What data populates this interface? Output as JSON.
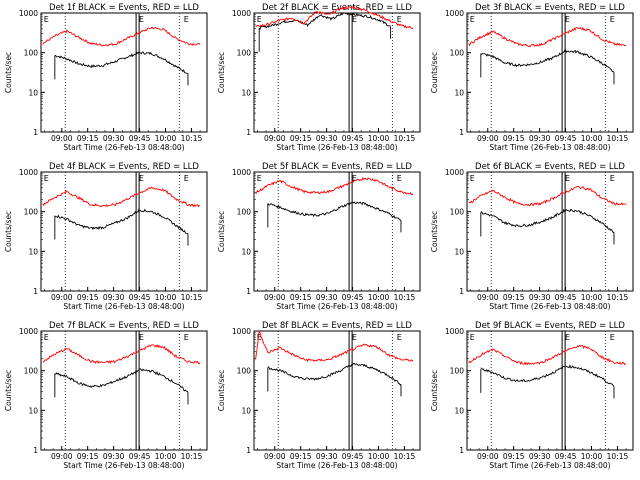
{
  "figure": {
    "common_ylabel": "Counts/sec",
    "common_xlabel": "Start Time (26-Feb-13 08:48:00)",
    "x_tick_labels": [
      "09:00",
      "09:15",
      "09:30",
      "09:45",
      "10:00",
      "10:15"
    ],
    "y_tick_labels": [
      "1",
      "10",
      "100",
      "1000"
    ],
    "marker_letters": [
      "E",
      "E",
      "E"
    ],
    "colors": {
      "events": "#000000",
      "lld": "#ff0000",
      "axes": "#000000"
    }
  },
  "chart_data": [
    {
      "type": "line",
      "title": "Det 1f BLACK = Events, RED = LLD",
      "xlabel": "Start Time (26-Feb-13 08:48:00)",
      "ylabel": "Counts/sec",
      "yscale": "log",
      "ylim": [
        1,
        1000
      ],
      "x_unit": "time",
      "series": [
        {
          "name": "Events",
          "color": "#000000",
          "x": [
            "08:56",
            "09:03",
            "09:10",
            "09:17",
            "09:24",
            "09:31",
            "09:38",
            "09:45",
            "09:52",
            "09:59",
            "10:06",
            "10:13"
          ],
          "values": [
            85,
            70,
            52,
            45,
            48,
            60,
            78,
            100,
            95,
            70,
            45,
            30
          ]
        },
        {
          "name": "LLD",
          "color": "#ff0000",
          "x": [
            "08:49",
            "08:56",
            "09:03",
            "09:10",
            "09:17",
            "09:24",
            "09:31",
            "09:38",
            "09:45",
            "09:52",
            "09:59",
            "10:06",
            "10:13",
            "10:20"
          ],
          "values": [
            170,
            260,
            350,
            240,
            170,
            155,
            165,
            230,
            320,
            430,
            380,
            230,
            170,
            160
          ]
        }
      ]
    },
    {
      "type": "line",
      "title": "Det 2f BLACK = Events, RED = LLD",
      "xlabel": "Start Time (26-Feb-13 08:48:00)",
      "ylabel": "Counts/sec",
      "yscale": "log",
      "ylim": [
        1,
        1000
      ],
      "x_unit": "time",
      "series": [
        {
          "name": "Events",
          "color": "#000000",
          "x": [
            "08:51",
            "08:58",
            "09:05",
            "09:12",
            "09:19",
            "09:26",
            "09:33",
            "09:40",
            "09:47",
            "09:54",
            "10:01",
            "10:07"
          ],
          "values": [
            420,
            480,
            600,
            650,
            500,
            900,
            700,
            1000,
            900,
            820,
            650,
            450
          ]
        },
        {
          "name": "LLD",
          "color": "#ff0000",
          "x": [
            "08:49",
            "08:56",
            "09:03",
            "09:10",
            "09:17",
            "09:24",
            "09:31",
            "09:38",
            "09:45",
            "09:52",
            "09:59",
            "10:06",
            "10:13",
            "10:20"
          ],
          "values": [
            450,
            520,
            650,
            750,
            560,
            1100,
            900,
            1300,
            1400,
            1200,
            900,
            650,
            480,
            420
          ]
        }
      ]
    },
    {
      "type": "line",
      "title": "Det 3f BLACK = Events, RED = LLD",
      "xlabel": "Start Time (26-Feb-13 08:48:00)",
      "ylabel": "Counts/sec",
      "yscale": "log",
      "ylim": [
        1,
        1000
      ],
      "x_unit": "time",
      "series": [
        {
          "name": "Events",
          "color": "#000000",
          "x": [
            "08:56",
            "09:03",
            "09:10",
            "09:17",
            "09:24",
            "09:31",
            "09:38",
            "09:45",
            "09:52",
            "09:59",
            "10:06",
            "10:13"
          ],
          "values": [
            95,
            80,
            55,
            48,
            50,
            58,
            75,
            110,
            105,
            80,
            55,
            32
          ]
        },
        {
          "name": "LLD",
          "color": "#ff0000",
          "x": [
            "08:49",
            "08:56",
            "09:03",
            "09:10",
            "09:17",
            "09:24",
            "09:31",
            "09:38",
            "09:45",
            "09:52",
            "09:59",
            "10:06",
            "10:13",
            "10:20"
          ],
          "values": [
            160,
            250,
            340,
            230,
            165,
            150,
            160,
            220,
            310,
            420,
            370,
            220,
            165,
            150
          ]
        }
      ]
    },
    {
      "type": "line",
      "title": "Det 4f BLACK = Events, RED = LLD",
      "xlabel": "Start Time (26-Feb-13 08:48:00)",
      "ylabel": "Counts/sec",
      "yscale": "log",
      "ylim": [
        1,
        1000
      ],
      "x_unit": "time",
      "series": [
        {
          "name": "Events",
          "color": "#000000",
          "x": [
            "08:56",
            "09:03",
            "09:10",
            "09:17",
            "09:24",
            "09:31",
            "09:38",
            "09:45",
            "09:52",
            "09:59",
            "10:06",
            "10:13"
          ],
          "values": [
            80,
            65,
            45,
            38,
            40,
            52,
            70,
            110,
            100,
            75,
            45,
            28
          ]
        },
        {
          "name": "LLD",
          "color": "#ff0000",
          "x": [
            "08:49",
            "08:56",
            "09:03",
            "09:10",
            "09:17",
            "09:24",
            "09:31",
            "09:38",
            "09:45",
            "09:52",
            "09:59",
            "10:06",
            "10:13",
            "10:20"
          ],
          "values": [
            150,
            230,
            320,
            220,
            150,
            140,
            150,
            210,
            300,
            400,
            350,
            210,
            150,
            140
          ]
        }
      ]
    },
    {
      "type": "line",
      "title": "Det 5f BLACK = Events, RED = LLD",
      "xlabel": "Start Time (26-Feb-13 08:48:00)",
      "ylabel": "Counts/sec",
      "yscale": "log",
      "ylim": [
        1,
        1000
      ],
      "x_unit": "time",
      "series": [
        {
          "name": "Events",
          "color": "#000000",
          "x": [
            "08:56",
            "09:03",
            "09:10",
            "09:17",
            "09:24",
            "09:31",
            "09:38",
            "09:45",
            "09:52",
            "09:59",
            "10:06",
            "10:13"
          ],
          "values": [
            160,
            130,
            100,
            85,
            80,
            90,
            130,
            170,
            160,
            120,
            90,
            60
          ]
        },
        {
          "name": "LLD",
          "color": "#ff0000",
          "x": [
            "08:49",
            "08:56",
            "09:03",
            "09:10",
            "09:17",
            "09:24",
            "09:31",
            "09:38",
            "09:45",
            "09:52",
            "09:59",
            "10:06",
            "10:13",
            "10:20"
          ],
          "values": [
            300,
            450,
            600,
            420,
            320,
            300,
            320,
            420,
            560,
            700,
            620,
            420,
            320,
            280
          ]
        }
      ]
    },
    {
      "type": "line",
      "title": "Det 6f BLACK = Events, RED = LLD",
      "xlabel": "Start Time (26-Feb-13 08:48:00)",
      "ylabel": "Counts/sec",
      "yscale": "log",
      "ylim": [
        1,
        1000
      ],
      "x_unit": "time",
      "series": [
        {
          "name": "Events",
          "color": "#000000",
          "x": [
            "08:56",
            "09:03",
            "09:10",
            "09:17",
            "09:24",
            "09:31",
            "09:38",
            "09:45",
            "09:52",
            "09:59",
            "10:06",
            "10:13"
          ],
          "values": [
            95,
            78,
            52,
            44,
            46,
            56,
            74,
            110,
            105,
            78,
            52,
            30
          ]
        },
        {
          "name": "LLD",
          "color": "#ff0000",
          "x": [
            "08:49",
            "08:56",
            "09:03",
            "09:10",
            "09:17",
            "09:24",
            "09:31",
            "09:38",
            "09:45",
            "09:52",
            "09:59",
            "10:06",
            "10:13",
            "10:20"
          ],
          "values": [
            160,
            250,
            340,
            230,
            160,
            150,
            160,
            220,
            310,
            420,
            370,
            220,
            160,
            150
          ]
        }
      ]
    },
    {
      "type": "line",
      "title": "Det 7f BLACK = Events, RED = LLD",
      "xlabel": "Start Time (26-Feb-13 08:48:00)",
      "ylabel": "Counts/sec",
      "yscale": "log",
      "ylim": [
        1,
        1000
      ],
      "x_unit": "time",
      "series": [
        {
          "name": "Events",
          "color": "#000000",
          "x": [
            "08:56",
            "09:03",
            "09:10",
            "09:17",
            "09:24",
            "09:31",
            "09:38",
            "09:45",
            "09:52",
            "09:59",
            "10:06",
            "10:13"
          ],
          "values": [
            85,
            70,
            48,
            40,
            42,
            55,
            72,
            105,
            98,
            72,
            48,
            28
          ]
        },
        {
          "name": "LLD",
          "color": "#ff0000",
          "x": [
            "08:49",
            "08:56",
            "09:03",
            "09:10",
            "09:17",
            "09:24",
            "09:31",
            "09:38",
            "09:45",
            "09:52",
            "09:59",
            "10:06",
            "10:13",
            "10:20"
          ],
          "values": [
            170,
            260,
            360,
            240,
            170,
            160,
            170,
            230,
            320,
            440,
            390,
            230,
            170,
            160
          ]
        }
      ]
    },
    {
      "type": "line",
      "title": "Det 8f BLACK = Events, RED = LLD",
      "xlabel": "Start Time (26-Feb-13 08:48:00)",
      "ylabel": "Counts/sec",
      "yscale": "log",
      "ylim": [
        1,
        1000
      ],
      "x_unit": "time",
      "series": [
        {
          "name": "Events",
          "color": "#000000",
          "x": [
            "08:56",
            "09:03",
            "09:10",
            "09:17",
            "09:24",
            "09:31",
            "09:38",
            "09:45",
            "09:52",
            "09:59",
            "10:06",
            "10:13"
          ],
          "values": [
            120,
            100,
            75,
            62,
            62,
            75,
            100,
            145,
            135,
            105,
            75,
            45
          ]
        },
        {
          "name": "LLD",
          "color": "#ff0000",
          "x": [
            "08:49",
            "08:51",
            "08:56",
            "09:03",
            "09:10",
            "09:17",
            "09:24",
            "09:31",
            "09:38",
            "09:45",
            "09:52",
            "09:59",
            "10:06",
            "10:13",
            "10:20"
          ],
          "values": [
            200,
            1000,
            280,
            380,
            260,
            190,
            180,
            190,
            250,
            340,
            450,
            400,
            250,
            190,
            180
          ]
        }
      ]
    },
    {
      "type": "line",
      "title": "Det 9f BLACK = Events, RED = LLD",
      "xlabel": "Start Time (26-Feb-13 08:48:00)",
      "ylabel": "Counts/sec",
      "yscale": "log",
      "ylim": [
        1,
        1000
      ],
      "x_unit": "time",
      "series": [
        {
          "name": "Events",
          "color": "#000000",
          "x": [
            "08:56",
            "09:03",
            "09:10",
            "09:17",
            "09:24",
            "09:31",
            "09:38",
            "09:45",
            "09:52",
            "09:59",
            "10:06",
            "10:13"
          ],
          "values": [
            110,
            90,
            65,
            55,
            56,
            68,
            90,
            130,
            120,
            92,
            65,
            40
          ]
        },
        {
          "name": "LLD",
          "color": "#ff0000",
          "x": [
            "08:49",
            "08:56",
            "09:03",
            "09:10",
            "09:17",
            "09:24",
            "09:31",
            "09:38",
            "09:45",
            "09:52",
            "09:59",
            "10:06",
            "10:13",
            "10:20"
          ],
          "values": [
            160,
            250,
            340,
            230,
            160,
            150,
            160,
            220,
            310,
            420,
            370,
            220,
            160,
            150
          ]
        }
      ]
    }
  ]
}
